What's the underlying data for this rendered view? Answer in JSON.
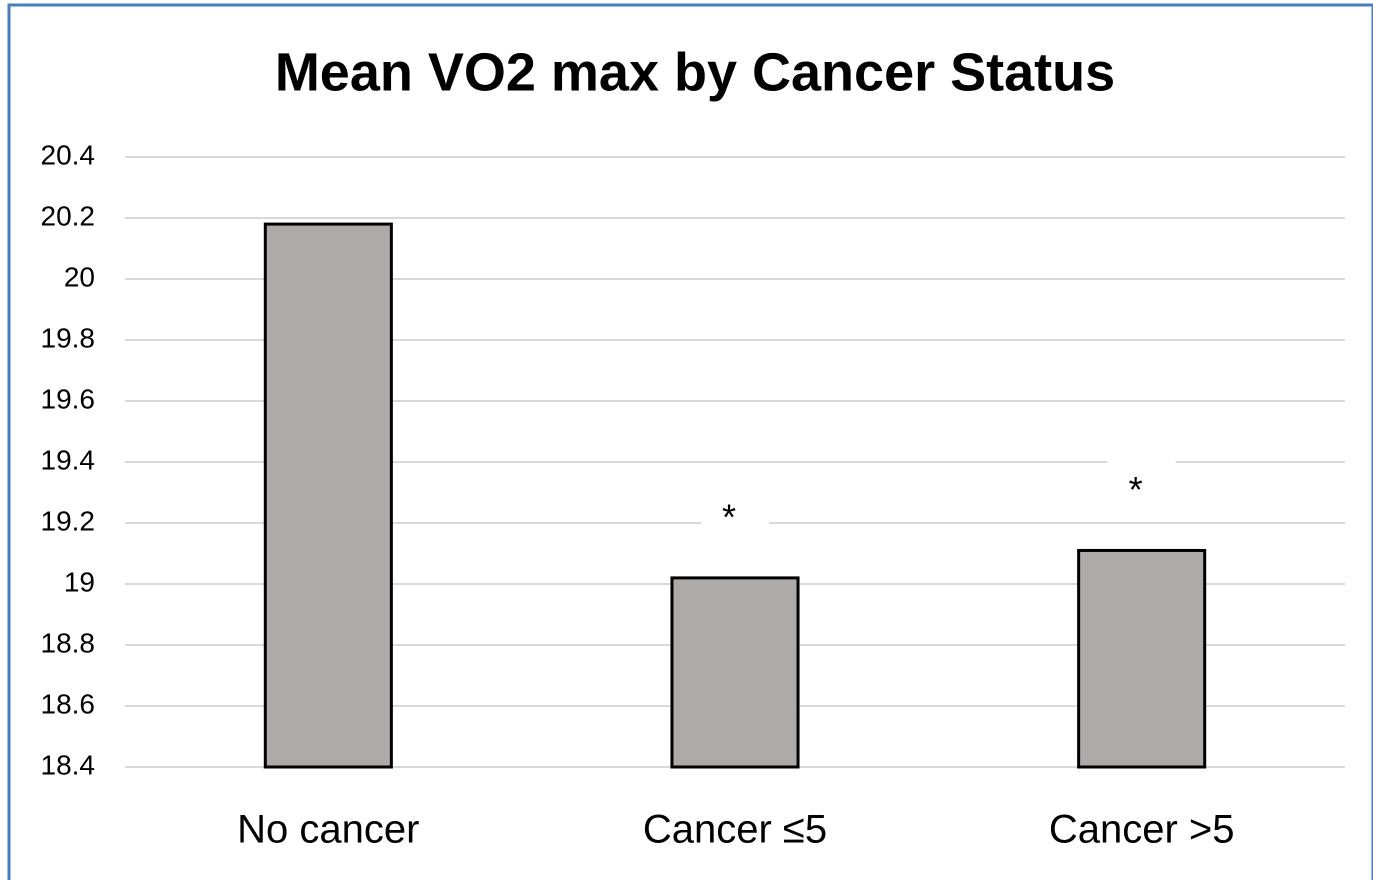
{
  "chart_data": {
    "type": "bar",
    "title": "Mean VO2 max by Cancer Status",
    "categories": [
      "No cancer",
      "Cancer ≤5",
      "Cancer >5"
    ],
    "values": [
      20.18,
      19.02,
      19.11
    ],
    "annotations": [
      null,
      "*",
      "*"
    ],
    "color": "#aeaaaa",
    "ylim": [
      18.4,
      20.4
    ],
    "yticks": [
      18.4,
      18.6,
      18.8,
      19,
      19.2,
      19.4,
      19.6,
      19.8,
      20,
      20.2,
      20.4
    ],
    "grid": true
  }
}
